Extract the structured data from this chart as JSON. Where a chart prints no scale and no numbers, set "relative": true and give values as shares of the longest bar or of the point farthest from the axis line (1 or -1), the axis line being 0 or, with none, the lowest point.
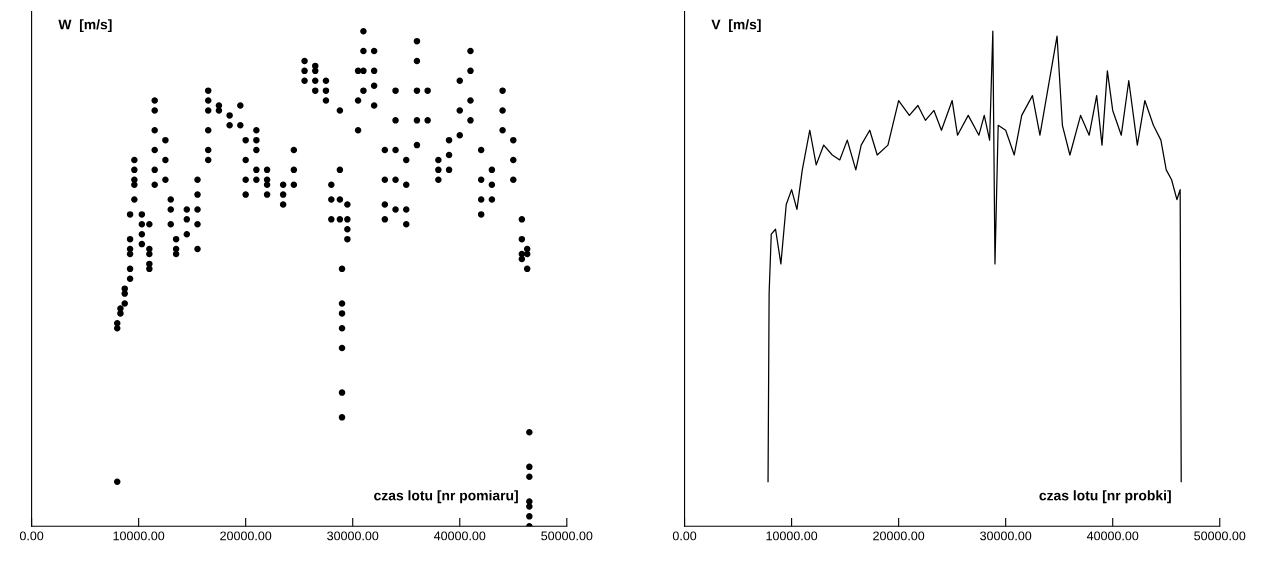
{
  "chart_data": [
    {
      "type": "scatter",
      "relative": true,
      "ylabel": "W  [m/s]",
      "xlabel": "czas lotu [nr pomiaru]",
      "xlim": [
        0,
        50000
      ],
      "xticks": [
        {
          "value": 0,
          "label": "0.00"
        },
        {
          "value": 10000,
          "label": "10000.00"
        },
        {
          "value": 20000,
          "label": "20000.00"
        },
        {
          "value": 30000,
          "label": "30000.00"
        },
        {
          "value": 40000,
          "label": "40000.00"
        },
        {
          "value": 50000,
          "label": "50000.00"
        }
      ],
      "marker": "circle",
      "grid": false,
      "series": [
        {
          "color": "#000000",
          "x": [
            8000,
            8000,
            8000,
            8300,
            8300,
            8700,
            8700,
            8700,
            9200,
            9200,
            9200,
            9200,
            9200,
            9200,
            9600,
            9600,
            9600,
            9600,
            9600,
            10300,
            10300,
            10300,
            10300,
            11000,
            11000,
            11000,
            11000,
            11000,
            11500,
            11500,
            11500,
            11500,
            11500,
            11500,
            12500,
            12500,
            12500,
            13000,
            13000,
            13000,
            13500,
            13500,
            13500,
            14500,
            14500,
            14500,
            15500,
            15500,
            15500,
            15500,
            15500,
            16500,
            16500,
            16500,
            16500,
            16500,
            16500,
            17500,
            17500,
            18500,
            18500,
            19500,
            19500,
            20000,
            20000,
            20000,
            20000,
            21000,
            21000,
            21000,
            21000,
            21000,
            22000,
            22000,
            22000,
            22000,
            23500,
            23500,
            23500,
            24500,
            24500,
            24500,
            25500,
            25500,
            25500,
            26500,
            26500,
            26500,
            26500,
            27500,
            27500,
            27500,
            28000,
            28000,
            28000,
            28800,
            28800,
            28800,
            28800,
            29000,
            29000,
            29000,
            29000,
            29000,
            29000,
            29000,
            29500,
            29500,
            29500,
            29500,
            30500,
            30500,
            30500,
            31000,
            31000,
            31000,
            31000,
            32000,
            32000,
            32000,
            32000,
            33000,
            33000,
            33000,
            33000,
            34000,
            34000,
            34000,
            34000,
            34000,
            35000,
            35000,
            35000,
            35000,
            36000,
            36000,
            36000,
            36000,
            36000,
            37000,
            37000,
            38000,
            38000,
            38000,
            39000,
            39000,
            39000,
            40000,
            40000,
            40000,
            41000,
            41000,
            41000,
            41000,
            42000,
            42000,
            42000,
            42000,
            43000,
            43000,
            43000,
            44000,
            44000,
            44000,
            45000,
            45000,
            45000,
            45800,
            45800,
            45800,
            45800,
            46300,
            46300,
            46300,
            46500,
            46500,
            46500,
            46500,
            46500,
            46500,
            46500
          ],
          "values": [
            0.09,
            0.4,
            0.41,
            0.43,
            0.44,
            0.45,
            0.47,
            0.48,
            0.5,
            0.52,
            0.55,
            0.56,
            0.58,
            0.63,
            0.66,
            0.69,
            0.7,
            0.72,
            0.74,
            0.63,
            0.61,
            0.59,
            0.57,
            0.55,
            0.53,
            0.52,
            0.56,
            0.61,
            0.69,
            0.72,
            0.76,
            0.8,
            0.84,
            0.86,
            0.78,
            0.74,
            0.7,
            0.66,
            0.64,
            0.61,
            0.58,
            0.56,
            0.55,
            0.59,
            0.62,
            0.64,
            0.7,
            0.67,
            0.64,
            0.61,
            0.56,
            0.88,
            0.86,
            0.84,
            0.8,
            0.76,
            0.74,
            0.85,
            0.84,
            0.83,
            0.81,
            0.85,
            0.81,
            0.78,
            0.74,
            0.7,
            0.67,
            0.8,
            0.78,
            0.76,
            0.72,
            0.7,
            0.72,
            0.7,
            0.69,
            0.67,
            0.69,
            0.67,
            0.65,
            0.76,
            0.72,
            0.69,
            0.94,
            0.92,
            0.9,
            0.93,
            0.92,
            0.9,
            0.88,
            0.9,
            0.88,
            0.86,
            0.69,
            0.66,
            0.62,
            0.84,
            0.72,
            0.66,
            0.62,
            0.36,
            0.4,
            0.22,
            0.27,
            0.45,
            0.52,
            0.43,
            0.65,
            0.62,
            0.6,
            0.58,
            0.92,
            0.86,
            0.8,
            1.0,
            0.96,
            0.92,
            0.88,
            0.96,
            0.92,
            0.89,
            0.85,
            0.76,
            0.7,
            0.65,
            0.62,
            0.88,
            0.82,
            0.76,
            0.7,
            0.64,
            0.74,
            0.69,
            0.64,
            0.61,
            0.98,
            0.94,
            0.88,
            0.82,
            0.77,
            0.88,
            0.82,
            0.74,
            0.72,
            0.7,
            0.78,
            0.75,
            0.72,
            0.9,
            0.84,
            0.79,
            0.96,
            0.92,
            0.86,
            0.82,
            0.76,
            0.7,
            0.66,
            0.63,
            0.72,
            0.69,
            0.66,
            0.88,
            0.84,
            0.8,
            0.78,
            0.74,
            0.7,
            0.62,
            0.58,
            0.55,
            0.54,
            0.56,
            0.55,
            0.52,
            0.19,
            0.12,
            0.1,
            0.05,
            0.04,
            0.02,
            0.0
          ]
        }
      ]
    },
    {
      "type": "line",
      "relative": true,
      "ylabel": "V  [m/s]",
      "xlabel": "czas lotu [nr probki]",
      "xlim": [
        0,
        50000
      ],
      "xticks": [
        {
          "value": 0,
          "label": "0.00"
        },
        {
          "value": 10000,
          "label": "10000.00"
        },
        {
          "value": 20000,
          "label": "20000.00"
        },
        {
          "value": 30000,
          "label": "30000.00"
        },
        {
          "value": 40000,
          "label": "40000.00"
        },
        {
          "value": 50000,
          "label": "50000.00"
        }
      ],
      "marker": "none",
      "line_style": "solid",
      "grid": false,
      "series": [
        {
          "color": "#000000",
          "x": [
            7800,
            7900,
            8100,
            8500,
            9000,
            9500,
            10000,
            10500,
            11000,
            11700,
            12300,
            13000,
            13800,
            14500,
            15200,
            16000,
            16500,
            17300,
            18000,
            19000,
            20000,
            21000,
            21800,
            22500,
            23300,
            24000,
            25000,
            25500,
            26500,
            27500,
            28000,
            28500,
            28800,
            29000,
            29300,
            30000,
            30800,
            31500,
            32500,
            33200,
            34000,
            34800,
            35300,
            36000,
            37000,
            37800,
            38500,
            39000,
            39500,
            40000,
            40800,
            41500,
            42300,
            43000,
            43800,
            44500,
            45000,
            45500,
            46000,
            46300,
            46400
          ],
          "values": [
            0.09,
            0.47,
            0.59,
            0.6,
            0.53,
            0.65,
            0.68,
            0.64,
            0.72,
            0.8,
            0.73,
            0.77,
            0.75,
            0.74,
            0.78,
            0.72,
            0.77,
            0.8,
            0.75,
            0.77,
            0.86,
            0.83,
            0.85,
            0.82,
            0.84,
            0.8,
            0.86,
            0.79,
            0.83,
            0.79,
            0.83,
            0.78,
            1.0,
            0.53,
            0.81,
            0.8,
            0.75,
            0.83,
            0.87,
            0.79,
            0.89,
            0.99,
            0.81,
            0.75,
            0.83,
            0.79,
            0.87,
            0.77,
            0.92,
            0.84,
            0.79,
            0.9,
            0.77,
            0.86,
            0.81,
            0.78,
            0.72,
            0.7,
            0.66,
            0.68,
            0.09
          ]
        }
      ]
    }
  ]
}
